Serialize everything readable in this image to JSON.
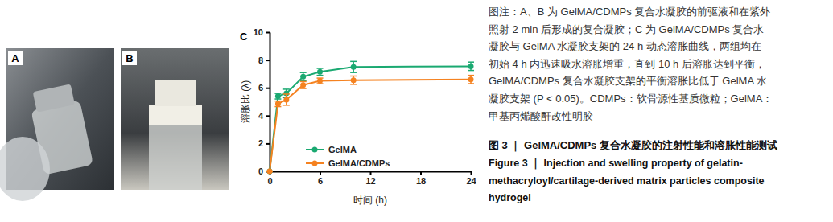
{
  "figure": {
    "panel_labels": [
      "A",
      "B",
      "C"
    ],
    "caption": [
      "图注：A、B 为 GelMA/CDMPs 复合水凝胶的前驱液和在紫外",
      "照射 2 min 后形成的复合凝胶；C 为 GelMA/CDMPs 复合水",
      "凝胶与 GelMA 水凝胶支架的 24 h 动态溶胀曲线，两组均在",
      "初始 4 h 内迅速吸水溶胀增重，直到 10 h 后溶胀达到平衡，",
      "GelMA/CDMPs 复合水凝胶支架的平衡溶胀比低于 GelMA 水",
      "凝胶支架 (P < 0.05)。CDMPs：软骨源性基质微粒；GelMA：",
      "甲基丙烯酸酐改性明胶"
    ],
    "title": "图 3 ｜ GelMA/CDMPs 复合水凝胶的注射性能和溶胀性能测试",
    "title_en": [
      "Figure 3 ｜ Injection and swelling property of gelatin-",
      "methacryloyl/cartilage-derived matrix particles composite",
      "hydrogel"
    ]
  },
  "chart_data": {
    "type": "line",
    "x_label": "时间 (h)",
    "y_label": "溶胀比 (λ)",
    "x": [
      0,
      1,
      2,
      4,
      6,
      10,
      24
    ],
    "series": [
      {
        "name": "GelMA",
        "color": "#1aa971",
        "marker": "circle",
        "values": [
          0,
          5.4,
          5.6,
          6.8,
          7.15,
          7.5,
          7.55
        ],
        "errors": [
          0,
          0.2,
          0.3,
          0.3,
          0.25,
          0.4,
          0.3
        ]
      },
      {
        "name": "GelMA/CDMPs",
        "color": "#f58220",
        "marker": "circle",
        "values": [
          0,
          4.85,
          5.15,
          6.2,
          6.5,
          6.55,
          6.6
        ],
        "errors": [
          0,
          0.2,
          0.4,
          0.25,
          0.2,
          0.3,
          0.3
        ]
      }
    ],
    "xlim": [
      0,
      24
    ],
    "xticks": [
      0,
      6,
      12,
      18,
      24
    ],
    "ylim": [
      0,
      10
    ],
    "yticks": [
      0,
      2,
      4,
      6,
      8,
      10
    ],
    "grid": false,
    "legend": "lower left"
  }
}
